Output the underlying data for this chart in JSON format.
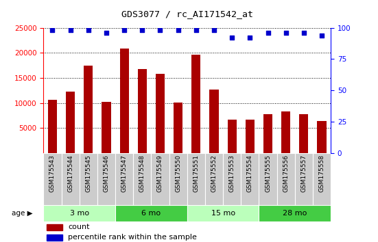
{
  "title": "GDS3077 / rc_AI171542_at",
  "samples": [
    "GSM175543",
    "GSM175544",
    "GSM175545",
    "GSM175546",
    "GSM175547",
    "GSM175548",
    "GSM175549",
    "GSM175550",
    "GSM175551",
    "GSM175552",
    "GSM175553",
    "GSM175554",
    "GSM175555",
    "GSM175556",
    "GSM175557",
    "GSM175558"
  ],
  "counts": [
    10600,
    12200,
    17500,
    10200,
    20900,
    16700,
    15800,
    10100,
    19600,
    12700,
    6700,
    6700,
    7800,
    8300,
    7700,
    6400
  ],
  "percentile_ranks_left": [
    24500,
    24500,
    24500,
    24000,
    24500,
    24500,
    24500,
    24500,
    24500,
    24500,
    23000,
    23000,
    24000,
    24000,
    24000,
    23500
  ],
  "bar_color": "#aa0000",
  "dot_color": "#0000cc",
  "ylim_left": [
    0,
    25000
  ],
  "ylim_right": [
    0,
    100
  ],
  "yticks_left": [
    5000,
    10000,
    15000,
    20000,
    25000
  ],
  "yticks_right": [
    0,
    25,
    50,
    75,
    100
  ],
  "groups": [
    {
      "label": "3 mo",
      "start": 0,
      "end": 4,
      "color": "#bbffbb"
    },
    {
      "label": "6 mo",
      "start": 4,
      "end": 8,
      "color": "#44cc44"
    },
    {
      "label": "15 mo",
      "start": 8,
      "end": 12,
      "color": "#bbffbb"
    },
    {
      "label": "28 mo",
      "start": 12,
      "end": 16,
      "color": "#44cc44"
    }
  ],
  "age_label": "age",
  "legend_count_label": "count",
  "legend_pct_label": "percentile rank within the sample",
  "sample_bg_color": "#cccccc",
  "plot_bg_color": "#ffffff"
}
